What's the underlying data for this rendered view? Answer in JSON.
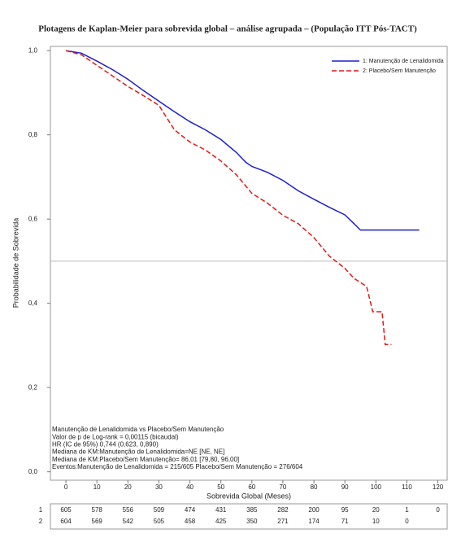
{
  "chart_data": {
    "type": "line",
    "title": "Plotagens de Kaplan-Meier para sobrevida global – análise agrupada – (População ITT Pós-TACT)",
    "xlabel": "Sobrevida Global (Meses)",
    "ylabel": "Probabilidade de Sobrevida",
    "xlim": [
      -5,
      123
    ],
    "ylim": [
      -0.02,
      1.01
    ],
    "xticks": [
      0,
      10,
      20,
      30,
      40,
      50,
      60,
      70,
      80,
      90,
      100,
      110,
      120
    ],
    "yticks": [
      {
        "value": 0,
        "label": "0,0"
      },
      {
        "value": 0.2,
        "label": "0,2"
      },
      {
        "value": 0.4,
        "label": "0,4"
      },
      {
        "value": 0.6,
        "label": "0,6"
      },
      {
        "value": 0.8,
        "label": "0,8"
      },
      {
        "value": 1.0,
        "label": "1,0"
      }
    ],
    "reference_line": 0.5,
    "legend": "top-right",
    "series": [
      {
        "name": "1: Manutenção de Lenalidomida",
        "color": "#1f1fd0",
        "dash": false,
        "x": [
          0,
          5,
          10,
          15,
          20,
          25,
          30,
          35,
          40,
          45,
          50,
          55,
          58,
          60,
          65,
          70,
          75,
          80,
          85,
          90,
          93,
          95,
          114
        ],
        "values": [
          1.0,
          0.994,
          0.975,
          0.955,
          0.932,
          0.905,
          0.88,
          0.855,
          0.831,
          0.812,
          0.789,
          0.758,
          0.735,
          0.725,
          0.711,
          0.692,
          0.667,
          0.647,
          0.628,
          0.61,
          0.589,
          0.574,
          0.574
        ]
      },
      {
        "name": "2: Placebo/Sem Manutenção",
        "color": "#e01818",
        "dash": true,
        "x": [
          0,
          5,
          10,
          15,
          20,
          25,
          30,
          35,
          40,
          45,
          50,
          55,
          60,
          65,
          70,
          75,
          80,
          85,
          90,
          93,
          97,
          99,
          102,
          103,
          105
        ],
        "values": [
          1.0,
          0.99,
          0.965,
          0.94,
          0.915,
          0.893,
          0.87,
          0.812,
          0.783,
          0.764,
          0.738,
          0.705,
          0.661,
          0.638,
          0.609,
          0.589,
          0.556,
          0.512,
          0.483,
          0.459,
          0.44,
          0.38,
          0.38,
          0.302,
          0.302
        ]
      }
    ],
    "annotations": [
      "Manutenção de Lenalidomida vs Placebo/Sem Manutenção",
      "Valor de p de Log-rank = 0,00115 (bicaudal)",
      "HR (IC de 95%) 0,744 (0,623, 0,890)",
      "Mediana de KM:Manutenção de Lenalidomida=NE [NE, NE]",
      "Mediana de KM:Placebo/Sem Manutenção= 86,01 [79,80, 96,00]",
      "Eventos:Manutenção de Lenalidomida = 215/605 Placebo/Sem Manutenção = 276/604"
    ],
    "risk_table": [
      {
        "name": "1",
        "values": [
          605,
          578,
          556,
          509,
          474,
          431,
          385,
          282,
          200,
          95,
          20,
          1,
          0
        ]
      },
      {
        "name": "2",
        "values": [
          604,
          569,
          542,
          505,
          458,
          425,
          350,
          271,
          174,
          71,
          10,
          0,
          null
        ]
      }
    ]
  }
}
